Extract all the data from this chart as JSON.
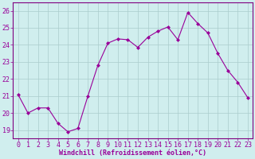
{
  "x": [
    0,
    1,
    2,
    3,
    4,
    5,
    6,
    7,
    8,
    9,
    10,
    11,
    12,
    13,
    14,
    15,
    16,
    17,
    18,
    19,
    20,
    21,
    22,
    23
  ],
  "y": [
    21.1,
    20.0,
    20.3,
    20.3,
    19.4,
    18.9,
    19.1,
    21.0,
    22.8,
    24.1,
    24.35,
    24.3,
    23.85,
    24.45,
    24.8,
    25.05,
    24.3,
    25.9,
    25.25,
    24.7,
    23.5,
    22.5,
    21.8,
    20.9
  ],
  "line_color": "#990099",
  "marker": "D",
  "markersize": 2,
  "linewidth": 0.8,
  "bg_color": "#d0eeee",
  "grid_color": "#aacccc",
  "xlabel": "Windchill (Refroidissement éolien,°C)",
  "xlabel_fontsize": 6,
  "tick_fontsize": 6,
  "ylim": [
    18.5,
    26.5
  ],
  "xlim": [
    -0.5,
    23.5
  ],
  "yticks": [
    19,
    20,
    21,
    22,
    23,
    24,
    25,
    26
  ],
  "xticks": [
    0,
    1,
    2,
    3,
    4,
    5,
    6,
    7,
    8,
    9,
    10,
    11,
    12,
    13,
    14,
    15,
    16,
    17,
    18,
    19,
    20,
    21,
    22,
    23
  ],
  "spine_color": "#800080",
  "fig_width": 3.2,
  "fig_height": 2.0,
  "dpi": 100
}
